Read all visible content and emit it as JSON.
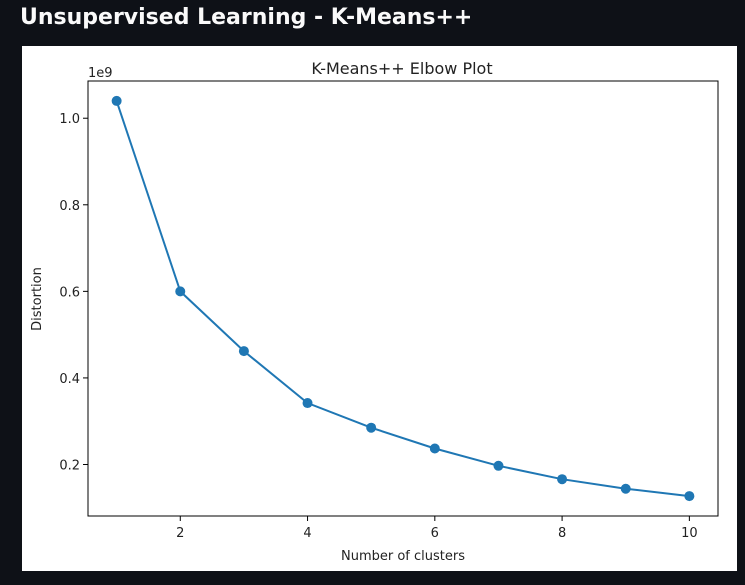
{
  "app": {
    "title": "Unsupervised Learning - K-Means++"
  },
  "colors": {
    "background": "#0e1117",
    "title_text": "#fafafa",
    "series": "#1f77b4"
  },
  "chart_data": {
    "type": "line",
    "title": "K-Means++ Elbow Plot",
    "xlabel": "Number of clusters",
    "ylabel": "Distortion",
    "y_offset_label": "1e9",
    "x": [
      1,
      2,
      3,
      4,
      5,
      6,
      7,
      8,
      9,
      10
    ],
    "series": [
      {
        "values": [
          1.04,
          0.6,
          0.462,
          0.342,
          0.285,
          0.237,
          0.197,
          0.166,
          0.144,
          0.127
        ],
        "marker": "circle"
      }
    ],
    "xticks": [
      2,
      4,
      6,
      8,
      10
    ],
    "xtick_labels": [
      "2",
      "4",
      "6",
      "8",
      "10"
    ],
    "yticks": [
      0.2,
      0.4,
      0.6,
      0.8,
      1.0
    ],
    "ytick_labels": [
      "0.2",
      "0.4",
      "0.6",
      "0.8",
      "1.0"
    ],
    "xlim": [
      0.55,
      10.45
    ],
    "ylim": [
      0.081,
      1.086
    ],
    "grid": false
  }
}
